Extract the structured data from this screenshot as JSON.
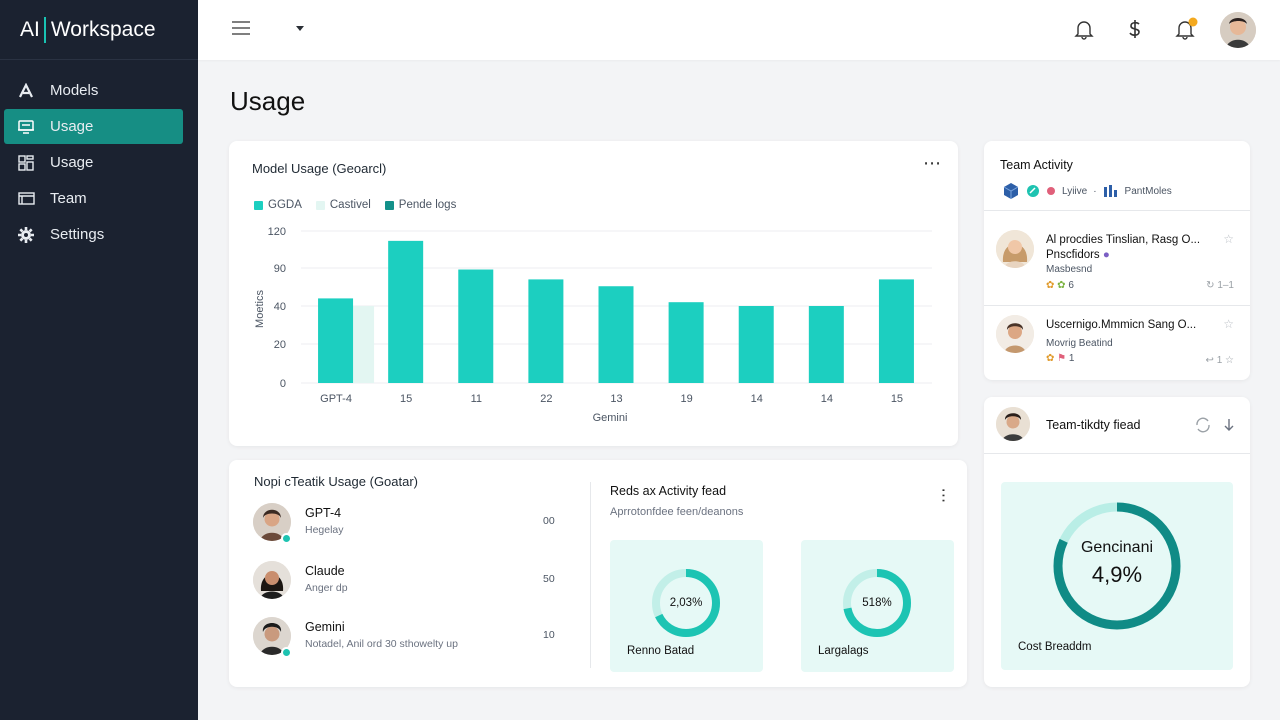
{
  "brand": {
    "left": "AI",
    "right": "Workspace"
  },
  "sidebar": {
    "items": [
      {
        "label": "Models",
        "icon": "model-a-icon",
        "active": false
      },
      {
        "label": "Usage",
        "icon": "usage-monitor-icon",
        "active": true
      },
      {
        "label": "Usage",
        "icon": "grid-icon",
        "active": false
      },
      {
        "label": "Team",
        "icon": "window-icon",
        "active": false
      },
      {
        "label": "Settings",
        "icon": "gear-icon",
        "active": false
      }
    ]
  },
  "header": {
    "icons": [
      "bell-icon",
      "dollar-icon",
      "bell-notification-icon",
      "avatar"
    ]
  },
  "page": {
    "title": "Usage"
  },
  "usage_card": {
    "title": "Model Usage (Geoarcl)",
    "legend": [
      {
        "label": "GGDA",
        "color": "#1ccfc0"
      },
      {
        "label": "Castivel",
        "color": "#e3f6f2"
      },
      {
        "label": "Pende logs",
        "color": "#13918a"
      }
    ]
  },
  "chart_data": {
    "type": "bar",
    "categories": [
      "GPT-4",
      "15",
      "11",
      "22",
      "13",
      "19",
      "14",
      "14",
      "15"
    ],
    "y_ticks": [
      0,
      20,
      40,
      90,
      120
    ],
    "ylabel": "Moetics",
    "xlabel": "Gemini",
    "series": [
      {
        "name": "GGDA",
        "values": [
          50,
          112,
          88,
          75,
          66,
          45,
          40,
          40,
          75
        ]
      },
      {
        "name": "Castivel",
        "values": [
          40,
          null,
          null,
          null,
          null,
          null,
          null,
          null,
          null
        ]
      }
    ],
    "ylim": [
      0,
      120
    ],
    "grid": true
  },
  "users_card": {
    "title": "Nopi cTeatik Usage (Goatar)",
    "users": [
      {
        "name": "GPT-4",
        "sub": "Hegelay",
        "value": "00",
        "online": true
      },
      {
        "name": "Claude",
        "sub": "Anger dp",
        "value": "50",
        "online": false
      },
      {
        "name": "Gemini",
        "sub": "Notadel, Anil ord 30 sthowelty up",
        "value": "10",
        "online": true
      }
    ],
    "feed_title": "Reds ax Activity fead",
    "feed_sub": "Aprrotonfdee feen/deanons",
    "minis": [
      {
        "value": "2,03%",
        "label": "Renno Batad",
        "fraction": 0.68
      },
      {
        "value": "518%",
        "label": "Largalags",
        "fraction": 0.72
      }
    ]
  },
  "team_card": {
    "title": "Team Activity",
    "tags": [
      "Lyiive",
      "PantMoles"
    ],
    "activities": [
      {
        "title": "Al procdies Tinslian, Rasg O...",
        "title2": "Pnscfidors",
        "sub": "Masbesnd",
        "meta": "6",
        "right": "1–1"
      },
      {
        "title": "Uscernigo.Mmmicn Sang O...",
        "title2": "",
        "sub": "Movrig Beatind",
        "meta": "1",
        "right": "1"
      }
    ]
  },
  "cost_card": {
    "title": "Team-tikdty fiead",
    "ring_name": "Gencinani",
    "ring_value": "4,9%",
    "label": "Cost Breaddm",
    "fraction": 0.82
  }
}
